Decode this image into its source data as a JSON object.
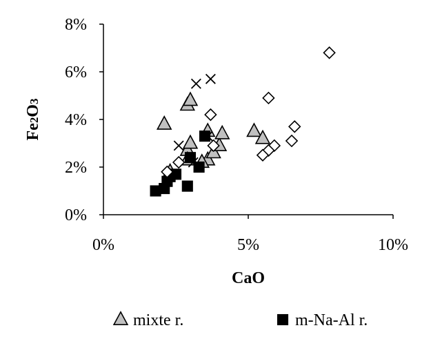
{
  "chart_data": {
    "type": "scatter",
    "title": "",
    "xlabel": "CaO",
    "ylabel": "Fe2O3",
    "xlim": [
      0,
      10
    ],
    "ylim": [
      0,
      8
    ],
    "x_ticks": [
      "0%",
      "5%",
      "10%"
    ],
    "y_ticks": [
      "0%",
      "2%",
      "4%",
      "6%",
      "8%"
    ],
    "grid": false,
    "legend_position": "bottom",
    "series": [
      {
        "name": "mixte r.",
        "marker": "triangle",
        "fill": "#c0c0c0",
        "stroke": "#000000",
        "points": [
          [
            2.1,
            3.8
          ],
          [
            2.9,
            4.6
          ],
          [
            3.0,
            4.8
          ],
          [
            2.9,
            2.7
          ],
          [
            3.0,
            3.0
          ],
          [
            3.6,
            3.5
          ],
          [
            3.6,
            2.3
          ],
          [
            3.8,
            2.6
          ],
          [
            4.0,
            2.9
          ],
          [
            4.1,
            3.4
          ],
          [
            5.2,
            3.5
          ],
          [
            5.5,
            3.2
          ],
          [
            2.9,
            2.3
          ],
          [
            2.3,
            1.8
          ],
          [
            3.4,
            2.2
          ]
        ]
      },
      {
        "name": "m-Na-Al r.",
        "marker": "square",
        "fill": "#000000",
        "stroke": "#000000",
        "points": [
          [
            1.8,
            1.0
          ],
          [
            2.1,
            1.1
          ],
          [
            2.2,
            1.4
          ],
          [
            2.3,
            1.6
          ],
          [
            2.5,
            1.7
          ],
          [
            2.9,
            1.2
          ],
          [
            3.3,
            2.0
          ],
          [
            3.5,
            3.3
          ],
          [
            3.0,
            2.4
          ]
        ]
      },
      {
        "marker": "x",
        "stroke": "#000000",
        "points": [
          [
            3.2,
            5.5
          ],
          [
            3.7,
            5.7
          ],
          [
            2.6,
            2.9
          ],
          [
            3.6,
            3.3
          ],
          [
            3.1,
            2.2
          ]
        ]
      },
      {
        "marker": "diamond",
        "fill": "#ffffff",
        "stroke": "#000000",
        "points": [
          [
            7.8,
            6.8
          ],
          [
            5.7,
            4.9
          ],
          [
            3.7,
            4.2
          ],
          [
            6.6,
            3.7
          ],
          [
            6.5,
            3.1
          ],
          [
            5.9,
            2.9
          ],
          [
            5.7,
            2.7
          ],
          [
            5.5,
            2.5
          ],
          [
            3.8,
            2.9
          ],
          [
            2.6,
            2.2
          ],
          [
            2.2,
            1.8
          ]
        ]
      }
    ]
  }
}
